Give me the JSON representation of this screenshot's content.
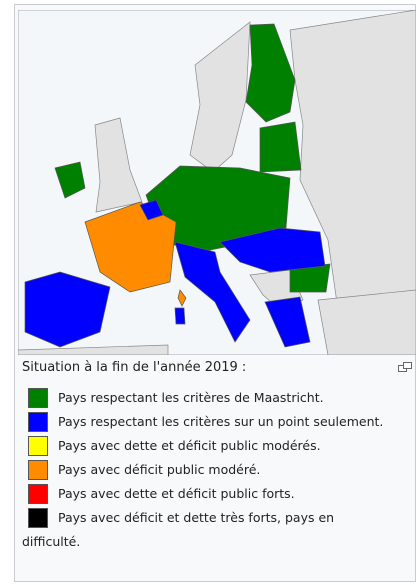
{
  "caption": "Situation à la fin de l'année 2019 :",
  "legend": [
    {
      "color": "#008000",
      "label": "Pays respectant les critères de Maastricht."
    },
    {
      "color": "#0000ff",
      "label": "Pays respectant les critères sur un point seulement."
    },
    {
      "color": "#ffff00",
      "label": "Pays avec dette et déficit public modérés."
    },
    {
      "color": "#ff8c00",
      "label": "Pays avec déficit public modéré."
    },
    {
      "color": "#ff0000",
      "label": "Pays avec dette et déficit public forts."
    },
    {
      "color": "#000000",
      "label": "Pays avec déficit et dette très forts, pays en difficulté."
    }
  ]
}
